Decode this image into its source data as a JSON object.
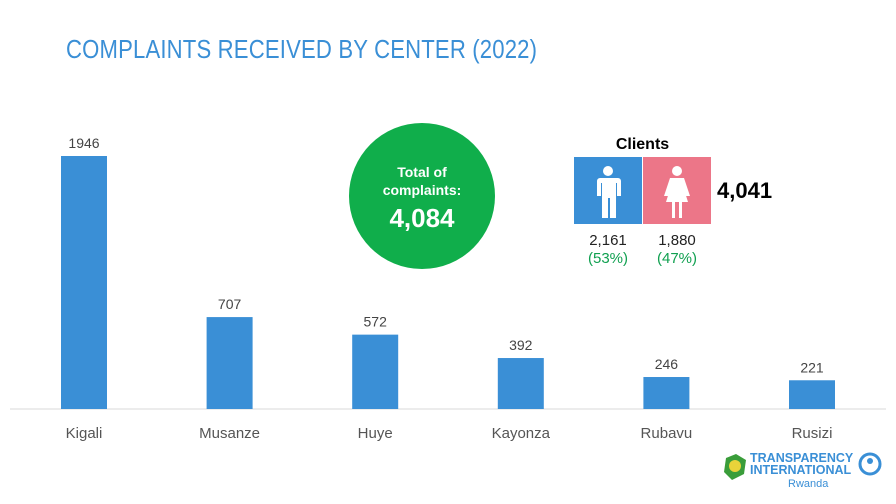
{
  "chart_data": {
    "type": "bar",
    "title": "COMPLAINTS RECEIVED BY CENTER (2022)",
    "categories": [
      "Kigali",
      "Musanze",
      "Huye",
      "Kayonza",
      "Rubavu",
      "Rusizi"
    ],
    "values": [
      1946,
      707,
      572,
      392,
      246,
      221
    ],
    "ylim": [
      0,
      1946
    ],
    "xlabel": "",
    "ylabel": "",
    "color": "#3a8fd6"
  },
  "total": {
    "label1": "Total of",
    "label2": "complaints:",
    "value": "4,084"
  },
  "clients": {
    "title": "Clients",
    "total": "4,041",
    "male": {
      "count": "2,161",
      "pct": "(53%)",
      "color": "#3a8fd6"
    },
    "female": {
      "count": "1,880",
      "pct": "(47%)",
      "color": "#ec7688"
    }
  },
  "logo": {
    "line1": "TRANSPARENCY",
    "line2": "INTERNATIONAL",
    "line3": "Rwanda"
  }
}
